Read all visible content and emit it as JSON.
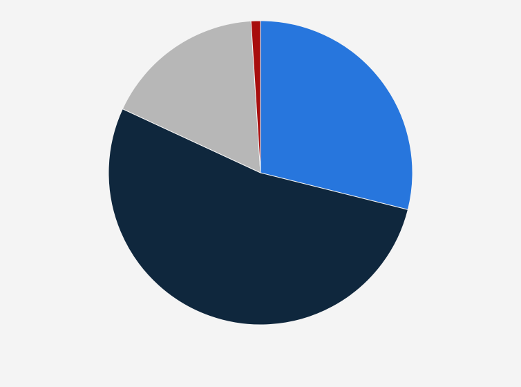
{
  "chart_data": {
    "type": "pie",
    "title": "",
    "start_angle_deg": 0,
    "direction": "clockwise",
    "legend": "none",
    "slices": [
      {
        "value": 28.9,
        "color": "#2776dd"
      },
      {
        "value": 53.0,
        "color": "#0f273d"
      },
      {
        "value": 17.1,
        "color": "#b7b7b7"
      },
      {
        "value": 1.0,
        "color": "#a80e0e"
      }
    ]
  },
  "colors": {
    "background": "#f4f4f4"
  }
}
